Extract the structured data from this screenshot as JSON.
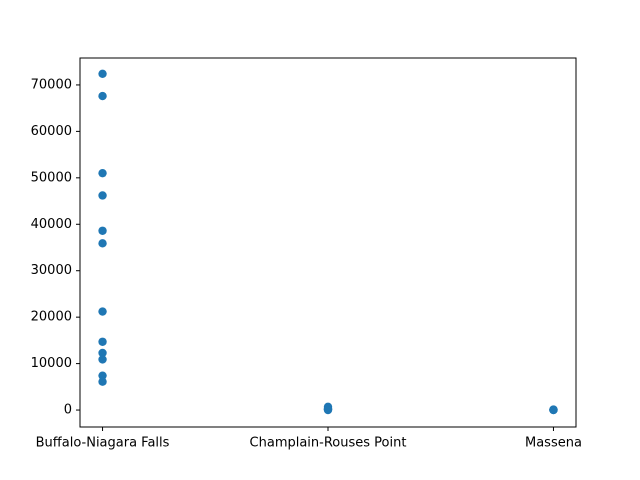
{
  "chart_data": {
    "type": "scatter",
    "categories": [
      "Buffalo-Niagara Falls",
      "Champlain-Rouses Point",
      "Massena"
    ],
    "color": "#1f77b4",
    "x": [
      "Buffalo-Niagara Falls",
      "Buffalo-Niagara Falls",
      "Buffalo-Niagara Falls",
      "Buffalo-Niagara Falls",
      "Buffalo-Niagara Falls",
      "Buffalo-Niagara Falls",
      "Buffalo-Niagara Falls",
      "Buffalo-Niagara Falls",
      "Buffalo-Niagara Falls",
      "Buffalo-Niagara Falls",
      "Buffalo-Niagara Falls",
      "Buffalo-Niagara Falls",
      "Champlain-Rouses Point",
      "Champlain-Rouses Point",
      "Champlain-Rouses Point",
      "Champlain-Rouses Point",
      "Champlain-Rouses Point",
      "Massena",
      "Massena",
      "Massena",
      "Massena"
    ],
    "values": [
      72400,
      67600,
      51000,
      46200,
      38600,
      35900,
      21200,
      14700,
      12300,
      10900,
      7400,
      6100,
      700,
      400,
      200,
      100,
      0,
      100,
      50,
      20,
      0
    ],
    "ylim": [
      -3650,
      75800
    ],
    "yticks": [
      0,
      10000,
      20000,
      30000,
      40000,
      50000,
      60000,
      70000
    ]
  }
}
